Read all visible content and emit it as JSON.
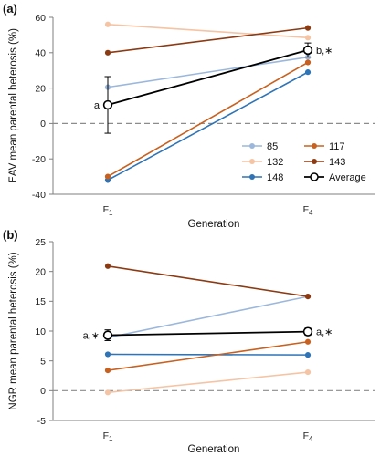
{
  "chart_data": [
    {
      "type": "line",
      "panel_label": "(a)",
      "xlabel": "Generation",
      "ylabel": "EAV mean parental heterosis (%)",
      "categories": [
        {
          "base": "F",
          "sub": "1"
        },
        {
          "base": "F",
          "sub": "4"
        }
      ],
      "ylim": [
        -40,
        60
      ],
      "yticks": [
        -40,
        -20,
        0,
        20,
        40,
        60
      ],
      "zero_line": true,
      "legend_position": "bottom-right",
      "series": [
        {
          "name": "85",
          "color": "#9bb8dc",
          "values": [
            20.5,
            37.5
          ]
        },
        {
          "name": "132",
          "color": "#f4c4a4",
          "values": [
            56,
            48.5
          ]
        },
        {
          "name": "148",
          "color": "#2e74b6",
          "values": [
            -32,
            29
          ]
        },
        {
          "name": "117",
          "color": "#c8601f",
          "values": [
            -30,
            34.5
          ]
        },
        {
          "name": "143",
          "color": "#8b3a12",
          "values": [
            40,
            54
          ]
        },
        {
          "name": "Average",
          "color": "#000000",
          "values": [
            10.5,
            41.5
          ],
          "errors": [
            16,
            4
          ],
          "marker": "open-circle"
        }
      ],
      "annotations": [
        {
          "text": "a",
          "category": 0
        },
        {
          "text": "b,∗",
          "category": 1
        }
      ]
    },
    {
      "type": "line",
      "panel_label": "(b)",
      "xlabel": "Generation",
      "ylabel": "NGR mean parental heterosis (%)",
      "categories": [
        {
          "base": "F",
          "sub": "1"
        },
        {
          "base": "F",
          "sub": "4"
        }
      ],
      "ylim": [
        -5,
        25
      ],
      "yticks": [
        -5,
        0,
        5,
        10,
        15,
        20,
        25
      ],
      "zero_line": true,
      "series": [
        {
          "name": "85",
          "color": "#9bb8dc",
          "values": [
            8.9,
            15.8
          ]
        },
        {
          "name": "132",
          "color": "#f4c4a4",
          "values": [
            -0.3,
            3.1
          ]
        },
        {
          "name": "148",
          "color": "#2e74b6",
          "values": [
            6.1,
            6.0
          ]
        },
        {
          "name": "117",
          "color": "#c8601f",
          "values": [
            3.4,
            8.2
          ]
        },
        {
          "name": "143",
          "color": "#8b3a12",
          "values": [
            20.9,
            15.8
          ]
        },
        {
          "name": "Average",
          "color": "#000000",
          "values": [
            9.3,
            9.9
          ],
          "errors": [
            0.9,
            0.6
          ],
          "marker": "open-circle"
        }
      ],
      "annotations": [
        {
          "text": "a,∗",
          "category": 0
        },
        {
          "text": "a,∗",
          "category": 1
        }
      ]
    }
  ]
}
